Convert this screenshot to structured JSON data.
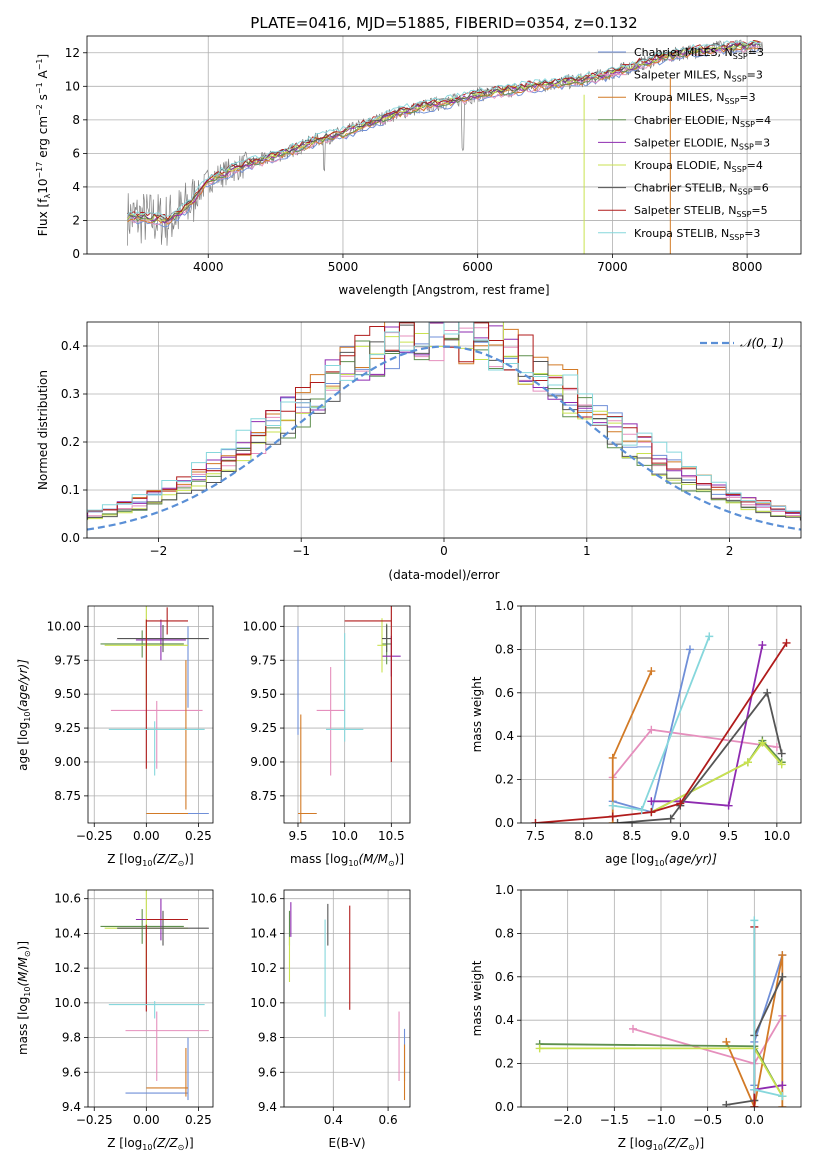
{
  "colors": {
    "Chabrier MILES": "#6f8fd8",
    "Salpeter MILES": "#e58fbd",
    "Kroupa MILES": "#d27a26",
    "Chabrier ELODIE": "#5e8f4e",
    "Salpeter ELODIE": "#8e2bb0",
    "Kroupa ELODIE": "#c9e250",
    "Chabrier STELIB": "#555555",
    "Salpeter STELIB": "#b01b1b",
    "Kroupa STELIB": "#86d7dc",
    "normal": "#5a8fd6"
  },
  "chart_data": [
    {
      "id": "spectrum",
      "type": "line",
      "title": "PLATE=0416, MJD=51885, FIBERID=0354, z=0.132",
      "xlabel": "wavelength [Angstrom, rest frame]",
      "ylabel": "Flux [f",
      "ylabel_sub": "λ",
      "ylabel_mid": "10",
      "ylabel_sup1": "−17",
      "ylabel_rest": " erg cm",
      "ylabel_sup2": "−2",
      "ylabel_rest2": " s",
      "ylabel_sup3": "−1",
      "ylabel_rest3": " A",
      "ylabel_sup4": "−1",
      "ylabel_end": "]",
      "xlim": [
        3100,
        8400
      ],
      "ylim": [
        0,
        13
      ],
      "xticks": [
        4000,
        5000,
        6000,
        7000,
        8000
      ],
      "yticks": [
        0,
        2,
        4,
        6,
        8,
        10,
        12
      ],
      "legend": [
        {
          "prefix": "Chabrier MILES, N",
          "sub": "SSP",
          "suffix": "=3"
        },
        {
          "prefix": "Salpeter MILES, N",
          "sub": "SSP",
          "suffix": "=3"
        },
        {
          "prefix": "Kroupa MILES, N",
          "sub": "SSP",
          "suffix": "=3"
        },
        {
          "prefix": "Chabrier ELODIE, N",
          "sub": "SSP",
          "suffix": "=4"
        },
        {
          "prefix": "Salpeter ELODIE, N",
          "sub": "SSP",
          "suffix": "=3"
        },
        {
          "prefix": "Kroupa ELODIE, N",
          "sub": "SSP",
          "suffix": "=4"
        },
        {
          "prefix": "Chabrier STELIB, N",
          "sub": "SSP",
          "suffix": "=6"
        },
        {
          "prefix": "Salpeter STELIB, N",
          "sub": "SSP",
          "suffix": "=5"
        },
        {
          "prefix": "Kroupa STELIB, N",
          "sub": "SSP",
          "suffix": "=3"
        }
      ],
      "continuum": {
        "x": [
          3400,
          3600,
          3700,
          3800,
          3900,
          4000,
          4200,
          4400,
          4600,
          4800,
          5000,
          5200,
          5400,
          5600,
          5800,
          6000,
          6200,
          6400,
          6600,
          6800,
          7000,
          7200,
          7400,
          7600,
          7800,
          8000,
          8100
        ],
        "y": [
          2.2,
          2.1,
          2.0,
          2.5,
          3.3,
          4.4,
          5.1,
          5.6,
          6.1,
          6.8,
          7.2,
          7.8,
          8.4,
          8.8,
          9.1,
          9.5,
          9.7,
          10.0,
          10.2,
          10.4,
          10.8,
          11.3,
          11.8,
          12.1,
          12.3,
          12.4,
          12.5
        ]
      }
    },
    {
      "id": "residuals",
      "type": "line",
      "xlabel": "(data-model)/error",
      "ylabel": "Normed distribution",
      "xlim": [
        -2.5,
        2.5
      ],
      "ylim": [
        0,
        0.45
      ],
      "xticks": [
        -2,
        -1,
        0,
        1,
        2
      ],
      "xtick_labels": [
        "−2",
        "−1",
        "0",
        "1",
        "2"
      ],
      "yticks": [
        0.0,
        0.1,
        0.2,
        0.3,
        0.4
      ],
      "ytick_labels": [
        "0.0",
        "0.1",
        "0.2",
        "0.3",
        "0.4"
      ],
      "legend_label": "𝒩(0, 1)",
      "series_note": "normal curve mean 0 sigma 1; nine step histograms"
    },
    {
      "id": "age_vs_Z",
      "type": "scatter",
      "xlabel": "Z [log",
      "xlabel_sub": "10",
      "xlabel_rest": "(Z/Z",
      "xlabel_sub2": "⊙",
      "xlabel_end": ")]",
      "ylabel": "age  [log",
      "ylabel_sub": "10",
      "ylabel_rest": "(age/yr)]",
      "xlim": [
        -0.28,
        0.32
      ],
      "ylim": [
        8.55,
        10.15
      ],
      "xticks": [
        -0.25,
        0.0,
        0.25
      ],
      "xtick_labels": [
        "−0.25",
        "0.00",
        "0.25"
      ],
      "yticks": [
        8.75,
        9.0,
        9.25,
        9.5,
        9.75,
        10.0
      ],
      "ytick_labels": [
        "8.75",
        "9.00",
        "9.25",
        "9.50",
        "9.75",
        "10.00"
      ],
      "points": [
        {
          "s": "Chabrier MILES",
          "x": 0.2,
          "y": 8.62,
          "xe": 0.1,
          "ye": 0
        },
        {
          "s": "Chabrier MILES",
          "x": 0.2,
          "y": 9.7,
          "xe": 0,
          "ye": 0.3
        },
        {
          "s": "Salpeter MILES",
          "x": 0.05,
          "y": 9.38,
          "xe": 0.22,
          "ye": 0.0
        },
        {
          "s": "Salpeter MILES",
          "x": 0.05,
          "y": 9.2,
          "xe": 0.0,
          "ye": 0.25
        },
        {
          "s": "Kroupa MILES",
          "x": 0.1,
          "y": 8.62,
          "xe": 0.1,
          "ye": 0
        },
        {
          "s": "Kroupa MILES",
          "x": 0.19,
          "y": 9.2,
          "xe": 0,
          "ye": 0.55
        },
        {
          "s": "Chabrier ELODIE",
          "x": -0.02,
          "y": 9.87,
          "xe": 0.2,
          "ye": 0.1
        },
        {
          "s": "Salpeter ELODIE",
          "x": 0.07,
          "y": 9.9,
          "xe": 0.12,
          "ye": 0.15
        },
        {
          "s": "Kroupa ELODIE",
          "x": 0.0,
          "y": 9.86,
          "xe": 0.2,
          "ye": 0.4
        },
        {
          "s": "Chabrier STELIB",
          "x": 0.08,
          "y": 9.91,
          "xe": 0.22,
          "ye": 0.1
        },
        {
          "s": "Salpeter STELIB",
          "x": 0.1,
          "y": 10.04,
          "xe": 0.1,
          "ye": 0.1
        },
        {
          "s": "Salpeter STELIB",
          "x": 0.0,
          "y": 9.5,
          "xe": 0,
          "ye": 0.55
        },
        {
          "s": "Kroupa STELIB",
          "x": 0.05,
          "y": 9.24,
          "xe": 0.23,
          "ye": 0.0
        },
        {
          "s": "Kroupa STELIB",
          "x": 0.04,
          "y": 9.1,
          "xe": 0,
          "ye": 0.2
        }
      ]
    },
    {
      "id": "age_vs_mass",
      "type": "scatter",
      "xlabel": "mass [log",
      "xlabel_sub": "10",
      "xlabel_rest": "(M/M",
      "xlabel_sub2": "⊙",
      "xlabel_end": ")]",
      "xlim": [
        9.35,
        10.7
      ],
      "ylim": [
        8.55,
        10.15
      ],
      "xticks": [
        9.5,
        10.0,
        10.5
      ],
      "xtick_labels": [
        "9.5",
        "10.0",
        "10.5"
      ],
      "yticks": [
        8.75,
        9.0,
        9.25,
        9.5,
        9.75,
        10.0
      ],
      "ytick_labels": [
        "8.75",
        "9.00",
        "9.25",
        "9.50",
        "9.75",
        "10.00"
      ],
      "points": [
        {
          "s": "Chabrier MILES",
          "x": 9.5,
          "y": 9.6,
          "xe": 0,
          "ye": 0.4
        },
        {
          "s": "Chabrier MILES",
          "x": 9.6,
          "y": 8.62,
          "xe": 0.1,
          "ye": 0
        },
        {
          "s": "Salpeter MILES",
          "x": 9.85,
          "y": 9.38,
          "xe": 0.15,
          "ye": 0
        },
        {
          "s": "Salpeter MILES",
          "x": 9.85,
          "y": 9.3,
          "xe": 0,
          "ye": 0.4
        },
        {
          "s": "Kroupa MILES",
          "x": 9.53,
          "y": 8.95,
          "xe": 0,
          "ye": 0.4
        },
        {
          "s": "Kroupa MILES",
          "x": 9.6,
          "y": 8.62,
          "xe": 0.1,
          "ye": 0
        },
        {
          "s": "Chabrier ELODIE",
          "x": 10.45,
          "y": 9.87,
          "xe": 0.05,
          "ye": 0.15
        },
        {
          "s": "Salpeter ELODIE",
          "x": 10.5,
          "y": 9.78,
          "xe": 0.1,
          "ye": 0.15
        },
        {
          "s": "Kroupa ELODIE",
          "x": 10.4,
          "y": 9.86,
          "xe": 0.05,
          "ye": 0.2
        },
        {
          "s": "Chabrier STELIB",
          "x": 10.45,
          "y": 9.91,
          "xe": 0.05,
          "ye": 0.1
        },
        {
          "s": "Salpeter STELIB",
          "x": 10.5,
          "y": 9.6,
          "xe": 0,
          "ye": 0.6
        },
        {
          "s": "Salpeter STELIB",
          "x": 10.25,
          "y": 10.04,
          "xe": 0.25,
          "ye": 0
        },
        {
          "s": "Kroupa STELIB",
          "x": 10.0,
          "y": 9.24,
          "xe": 0.2,
          "ye": 0
        },
        {
          "s": "Kroupa STELIB",
          "x": 10.0,
          "y": 9.55,
          "xe": 0,
          "ye": 0.4
        }
      ]
    },
    {
      "id": "weight_vs_age",
      "type": "line",
      "xlabel": "age  [log",
      "xlabel_sub": "10",
      "xlabel_rest": "(age/yr)]",
      "ylabel": "mass weight",
      "xlim": [
        7.35,
        10.25
      ],
      "ylim": [
        0,
        1
      ],
      "xticks": [
        7.5,
        8.0,
        8.5,
        9.0,
        9.5,
        10.0
      ],
      "xtick_labels": [
        "7.5",
        "8.0",
        "8.5",
        "9.0",
        "9.5",
        "10.0"
      ],
      "yticks": [
        0,
        0.2,
        0.4,
        0.6,
        0.8,
        1.0
      ],
      "ytick_labels": [
        "0.0",
        "0.2",
        "0.4",
        "0.6",
        "0.8",
        "1.0"
      ],
      "series": [
        {
          "s": "Chabrier MILES",
          "x": [
            8.3,
            8.7,
            9.1
          ],
          "y": [
            0.1,
            0.05,
            0.8
          ]
        },
        {
          "s": "Salpeter MILES",
          "x": [
            8.3,
            8.7,
            10.0
          ],
          "y": [
            0.21,
            0.43,
            0.35
          ]
        },
        {
          "s": "Kroupa MILES",
          "x": [
            8.3,
            8.3,
            8.7
          ],
          "y": [
            0.0,
            0.3,
            0.7
          ]
        },
        {
          "s": "Chabrier ELODIE",
          "x": [
            8.7,
            9.7,
            9.85,
            10.05
          ],
          "y": [
            0.05,
            0.28,
            0.38,
            0.28
          ]
        },
        {
          "s": "Salpeter ELODIE",
          "x": [
            8.7,
            9.0,
            9.5,
            9.85
          ],
          "y": [
            0.1,
            0.1,
            0.08,
            0.82
          ]
        },
        {
          "s": "Kroupa ELODIE",
          "x": [
            8.7,
            9.7,
            9.85,
            10.05
          ],
          "y": [
            0.05,
            0.28,
            0.37,
            0.27
          ]
        },
        {
          "s": "Chabrier STELIB",
          "x": [
            8.35,
            8.9,
            9.0,
            9.9,
            10.05
          ],
          "y": [
            0.0,
            0.02,
            0.08,
            0.6,
            0.32
          ]
        },
        {
          "s": "Salpeter STELIB",
          "x": [
            7.5,
            8.3,
            8.7,
            9.0,
            10.1
          ],
          "y": [
            0.0,
            0.03,
            0.05,
            0.09,
            0.83
          ]
        },
        {
          "s": "Kroupa STELIB",
          "x": [
            8.3,
            8.6,
            9.3
          ],
          "y": [
            0.08,
            0.06,
            0.86
          ]
        }
      ]
    },
    {
      "id": "mass_vs_Z",
      "type": "scatter",
      "xlabel": "Z [log",
      "xlabel_sub": "10",
      "xlabel_rest": "(Z/Z",
      "xlabel_sub2": "⊙",
      "xlabel_end": ")]",
      "ylabel": "mass [log",
      "ylabel_sub": "10",
      "ylabel_rest": "(M/M",
      "ylabel_sub2": "⊙",
      "ylabel_end": ")]",
      "xlim": [
        -0.28,
        0.32
      ],
      "ylim": [
        9.4,
        10.65
      ],
      "xticks": [
        -0.25,
        0.0,
        0.25
      ],
      "xtick_labels": [
        "−0.25",
        "0.00",
        "0.25"
      ],
      "yticks": [
        9.4,
        9.6,
        9.8,
        10.0,
        10.2,
        10.4,
        10.6
      ],
      "ytick_labels": [
        "9.4",
        "9.6",
        "9.8",
        "10.0",
        "10.2",
        "10.4",
        "10.6"
      ],
      "points": [
        {
          "s": "Chabrier MILES",
          "x": 0.05,
          "y": 9.48,
          "xe": 0.15,
          "ye": 0
        },
        {
          "s": "Chabrier MILES",
          "x": 0.2,
          "y": 9.62,
          "xe": 0,
          "ye": 0.18
        },
        {
          "s": "Salpeter MILES",
          "x": 0.1,
          "y": 9.84,
          "xe": 0.2,
          "ye": 0
        },
        {
          "s": "Salpeter MILES",
          "x": 0.05,
          "y": 9.75,
          "xe": 0,
          "ye": 0.2
        },
        {
          "s": "Kroupa MILES",
          "x": 0.1,
          "y": 9.51,
          "xe": 0.1,
          "ye": 0
        },
        {
          "s": "Kroupa MILES",
          "x": 0.19,
          "y": 9.6,
          "xe": 0,
          "ye": 0.14
        },
        {
          "s": "Chabrier ELODIE",
          "x": -0.02,
          "y": 10.44,
          "xe": 0.2,
          "ye": 0.1
        },
        {
          "s": "Salpeter ELODIE",
          "x": 0.07,
          "y": 10.48,
          "xe": 0.12,
          "ye": 0.12
        },
        {
          "s": "Kroupa ELODIE",
          "x": 0.0,
          "y": 10.43,
          "xe": 0.2,
          "ye": 0.3
        },
        {
          "s": "Chabrier STELIB",
          "x": 0.08,
          "y": 10.43,
          "xe": 0.22,
          "ye": 0.1
        },
        {
          "s": "Salpeter STELIB",
          "x": 0.1,
          "y": 10.48,
          "xe": 0.1,
          "ye": 0
        },
        {
          "s": "Salpeter STELIB",
          "x": 0.0,
          "y": 10.2,
          "xe": 0,
          "ye": 0.25
        },
        {
          "s": "Kroupa STELIB",
          "x": 0.05,
          "y": 9.99,
          "xe": 0.23,
          "ye": 0
        },
        {
          "s": "Kroupa STELIB",
          "x": 0.04,
          "y": 9.96,
          "xe": 0,
          "ye": 0.05
        }
      ]
    },
    {
      "id": "mass_vs_EBV",
      "type": "scatter",
      "xlabel": "E(B-V)",
      "xlim": [
        0.22,
        0.68
      ],
      "ylim": [
        9.4,
        10.65
      ],
      "xticks": [
        0.4,
        0.6
      ],
      "xtick_labels": [
        "0.4",
        "0.6"
      ],
      "yticks": [
        9.4,
        9.6,
        9.8,
        10.0,
        10.2,
        10.4,
        10.6
      ],
      "ytick_labels": [
        "9.4",
        "9.6",
        "9.8",
        "10.0",
        "10.2",
        "10.4",
        "10.6"
      ],
      "points": [
        {
          "s": "Chabrier MILES",
          "x": 0.66,
          "y": 9.7,
          "xe": 0,
          "ye": 0.15
        },
        {
          "s": "Salpeter MILES",
          "x": 0.64,
          "y": 9.75,
          "xe": 0,
          "ye": 0.2
        },
        {
          "s": "Kroupa MILES",
          "x": 0.66,
          "y": 9.6,
          "xe": 0,
          "ye": 0.16
        },
        {
          "s": "Chabrier ELODIE",
          "x": 0.24,
          "y": 10.43,
          "xe": 0,
          "ye": 0.1
        },
        {
          "s": "Salpeter ELODIE",
          "x": 0.245,
          "y": 10.48,
          "xe": 0,
          "ye": 0.1
        },
        {
          "s": "Kroupa ELODIE",
          "x": 0.24,
          "y": 10.25,
          "xe": 0,
          "ye": 0.13
        },
        {
          "s": "Chabrier STELIB",
          "x": 0.38,
          "y": 10.45,
          "xe": 0,
          "ye": 0.12
        },
        {
          "s": "Salpeter STELIB",
          "x": 0.46,
          "y": 10.26,
          "xe": 0,
          "ye": 0.3
        },
        {
          "s": "Kroupa STELIB",
          "x": 0.37,
          "y": 10.2,
          "xe": 0,
          "ye": 0.28
        }
      ]
    },
    {
      "id": "weight_vs_Z",
      "type": "line",
      "xlabel": "Z [log",
      "xlabel_sub": "10",
      "xlabel_rest": "(Z/Z",
      "xlabel_sub2": "⊙",
      "xlabel_end": ")]",
      "ylabel": "mass weight",
      "xlim": [
        -2.5,
        0.5
      ],
      "ylim": [
        0,
        1
      ],
      "xticks": [
        -2.0,
        -1.5,
        -1.0,
        -0.5,
        0.0
      ],
      "xtick_labels": [
        "−2.0",
        "−1.5",
        "−1.0",
        "−0.5",
        "0.0"
      ],
      "yticks": [
        0,
        0.2,
        0.4,
        0.6,
        0.8,
        1.0
      ],
      "ytick_labels": [
        "0.0",
        "0.2",
        "0.4",
        "0.6",
        "0.8",
        "1.0"
      ],
      "series": [
        {
          "s": "Chabrier MILES",
          "x": [
            0.0,
            0.0,
            0.3
          ],
          "y": [
            0.1,
            0.3,
            0.7
          ]
        },
        {
          "s": "Salpeter MILES",
          "x": [
            -1.3,
            0.0,
            0.3
          ],
          "y": [
            0.36,
            0.2,
            0.42
          ]
        },
        {
          "s": "Kroupa MILES",
          "x": [
            -0.3,
            0.0,
            0.3,
            0.3
          ],
          "y": [
            0.3,
            0.0,
            0.7,
            0.0
          ]
        },
        {
          "s": "Chabrier ELODIE",
          "x": [
            -2.3,
            0.0,
            0.3
          ],
          "y": [
            0.29,
            0.28,
            0.05
          ]
        },
        {
          "s": "Salpeter ELODIE",
          "x": [
            0.0,
            0.3
          ],
          "y": [
            0.08,
            0.1
          ]
        },
        {
          "s": "Kroupa ELODIE",
          "x": [
            -2.3,
            0.0,
            0.3
          ],
          "y": [
            0.27,
            0.27,
            0.05
          ]
        },
        {
          "s": "Chabrier STELIB",
          "x": [
            -0.3,
            0.0,
            0.0,
            0.3
          ],
          "y": [
            0.01,
            0.03,
            0.33,
            0.6
          ]
        },
        {
          "s": "Salpeter STELIB",
          "x": [
            0.0,
            0.0
          ],
          "y": [
            0.0,
            0.83
          ]
        },
        {
          "s": "Kroupa STELIB",
          "x": [
            0.0,
            0.0,
            0.3
          ],
          "y": [
            0.86,
            0.08,
            0.05
          ]
        }
      ]
    }
  ]
}
